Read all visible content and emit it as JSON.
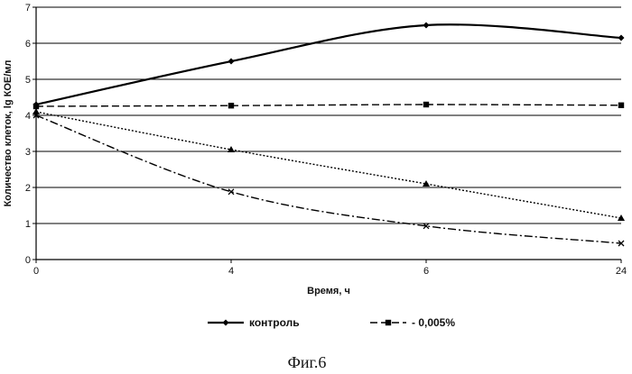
{
  "chart_data": {
    "type": "line",
    "categories": [
      "0",
      "4",
      "6",
      "24"
    ],
    "xlabel": "Время, ч",
    "ylabel": "Количество клеток, lg КОЕ/мл",
    "ylim": [
      0,
      7
    ],
    "yticks": [
      "0",
      "1",
      "2",
      "3",
      "4",
      "5",
      "6",
      "7"
    ],
    "grid": true,
    "legend_position": "bottom",
    "series": [
      {
        "name": "контроль",
        "values": [
          4.3,
          5.5,
          6.5,
          6.15
        ],
        "style": "solid",
        "marker": "diamond",
        "color": "#000000"
      },
      {
        "name": "0,005%",
        "values": [
          4.25,
          4.27,
          4.3,
          4.28
        ],
        "style": "dashed",
        "marker": "square",
        "color": "#000000"
      },
      {
        "values": [
          4.1,
          3.05,
          2.1,
          1.15
        ],
        "style": "dotted",
        "marker": "triangle",
        "color": "#000000"
      },
      {
        "values": [
          4.0,
          1.88,
          0.93,
          0.45
        ],
        "style": "dashdot",
        "marker": "cross",
        "color": "#000000"
      }
    ]
  },
  "caption": "Фиг.6"
}
